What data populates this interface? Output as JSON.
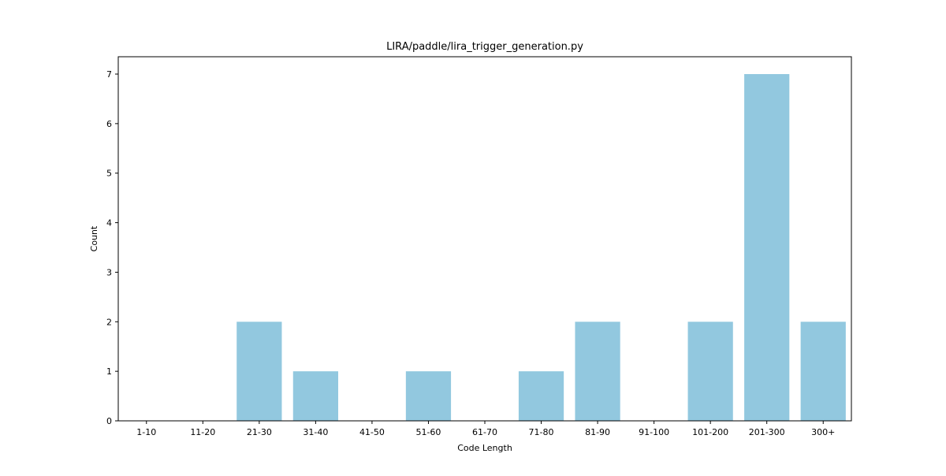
{
  "chart_data": {
    "type": "bar",
    "title": "LIRA/paddle/lira_trigger_generation.py",
    "xlabel": "Code Length",
    "ylabel": "Count",
    "categories": [
      "1-10",
      "11-20",
      "21-30",
      "31-40",
      "41-50",
      "51-60",
      "61-70",
      "71-80",
      "81-90",
      "91-100",
      "101-200",
      "201-300",
      "300+"
    ],
    "values": [
      0,
      0,
      2,
      1,
      0,
      1,
      0,
      1,
      2,
      0,
      2,
      7,
      2
    ],
    "ylim": [
      0,
      7.35
    ],
    "yticks": [
      0,
      1,
      2,
      3,
      4,
      5,
      6,
      7
    ],
    "grid": false,
    "bar_color": "#92c8df"
  }
}
